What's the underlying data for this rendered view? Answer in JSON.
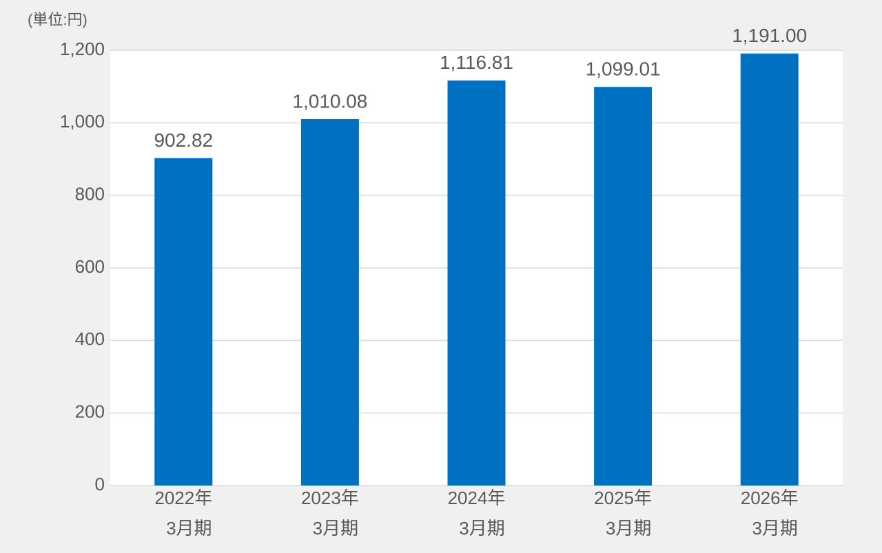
{
  "chart_data": {
    "type": "bar",
    "unit_label": "(単位:円)",
    "categories": [
      [
        "2022年",
        "3月期"
      ],
      [
        "2023年",
        "3月期"
      ],
      [
        "2024年",
        "3月期"
      ],
      [
        "2025年",
        "3月期"
      ],
      [
        "2026年",
        "3月期"
      ]
    ],
    "values": [
      902.82,
      1010.08,
      1116.81,
      1099.01,
      1191.0
    ],
    "value_labels": [
      "902.82",
      "1,010.08",
      "1,116.81",
      "1,099.01",
      "1,191.00"
    ],
    "color": "#0070c0",
    "ylim": [
      0,
      1200
    ],
    "yticks": [
      0,
      200,
      400,
      600,
      800,
      {
        "value": 1000,
        "label": "1,000"
      },
      {
        "value": 1200,
        "label": "1,200"
      }
    ],
    "grid": true
  }
}
